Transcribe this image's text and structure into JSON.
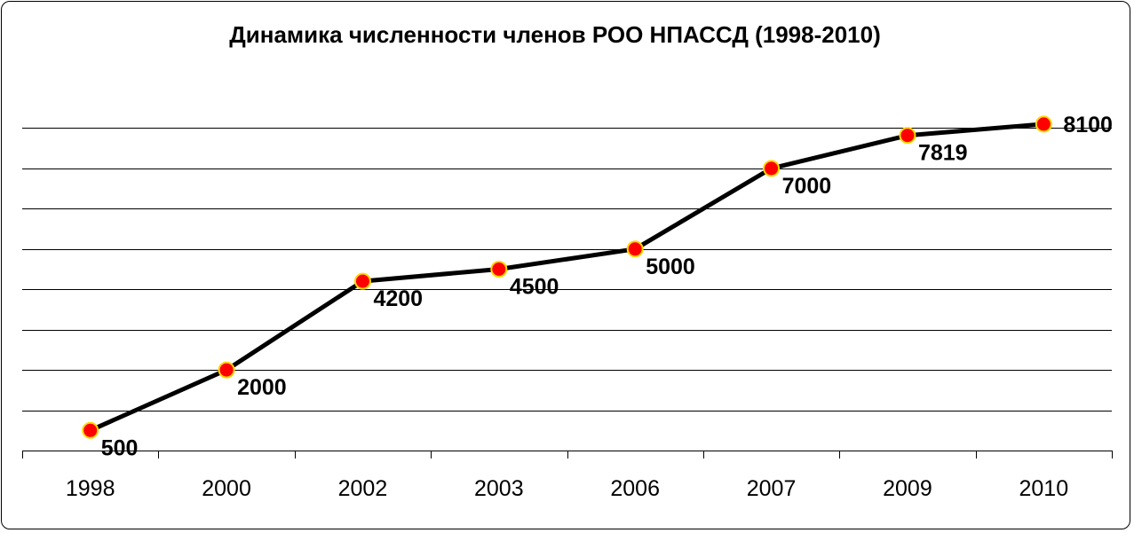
{
  "chart_data": {
    "type": "line",
    "title": "Динамика численности членов РОО НПАССД (1998-2010)",
    "xlabel": "",
    "ylabel": "",
    "categories": [
      "1998",
      "2000",
      "2002",
      "2003",
      "2006",
      "2007",
      "2009",
      "2010"
    ],
    "series": [
      {
        "values": [
          500,
          2000,
          4200,
          4500,
          5000,
          7000,
          7819,
          8100
        ]
      }
    ],
    "data_labels": [
      "500",
      "2000",
      "4200",
      "4500",
      "5000",
      "7000",
      "7819",
      "8100"
    ],
    "ylim": [
      0,
      9000
    ],
    "y_gridline_step": 1000,
    "grid": true,
    "legend": "none",
    "colors": {
      "line": "#000000",
      "marker_fill": "#ff0000",
      "marker_edge": "#ffd700",
      "gridline": "#000000"
    }
  }
}
